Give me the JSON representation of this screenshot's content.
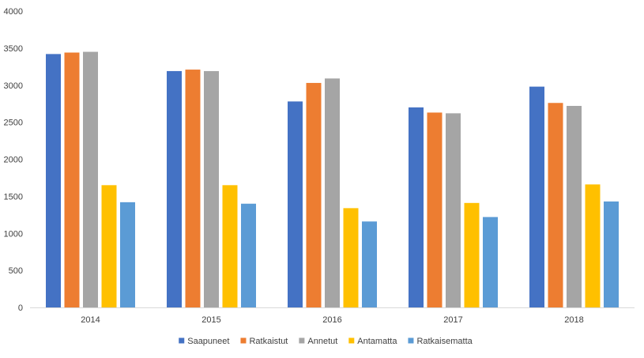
{
  "chart_data": {
    "type": "bar",
    "title": "",
    "xlabel": "",
    "ylabel": "",
    "ylim": [
      0,
      4000
    ],
    "yticks": [
      0,
      500,
      1000,
      1500,
      2000,
      2500,
      3000,
      3500,
      4000
    ],
    "grid": false,
    "legend_position": "bottom",
    "categories": [
      "2014",
      "2015",
      "2016",
      "2017",
      "2018"
    ],
    "series": [
      {
        "name": "Saapuneet",
        "color": "#4472C4",
        "values": [
          3420,
          3190,
          2780,
          2700,
          2980
        ]
      },
      {
        "name": "Ratkaistut",
        "color": "#ED7D31",
        "values": [
          3440,
          3210,
          3030,
          2630,
          2760
        ]
      },
      {
        "name": "Annetut",
        "color": "#A5A5A5",
        "values": [
          3450,
          3190,
          3090,
          2620,
          2720
        ]
      },
      {
        "name": "Antamatta",
        "color": "#FFC000",
        "values": [
          1650,
          1650,
          1340,
          1410,
          1660
        ]
      },
      {
        "name": "Ratkaisematta",
        "color": "#5B9BD5",
        "values": [
          1420,
          1400,
          1160,
          1220,
          1430
        ]
      }
    ]
  }
}
